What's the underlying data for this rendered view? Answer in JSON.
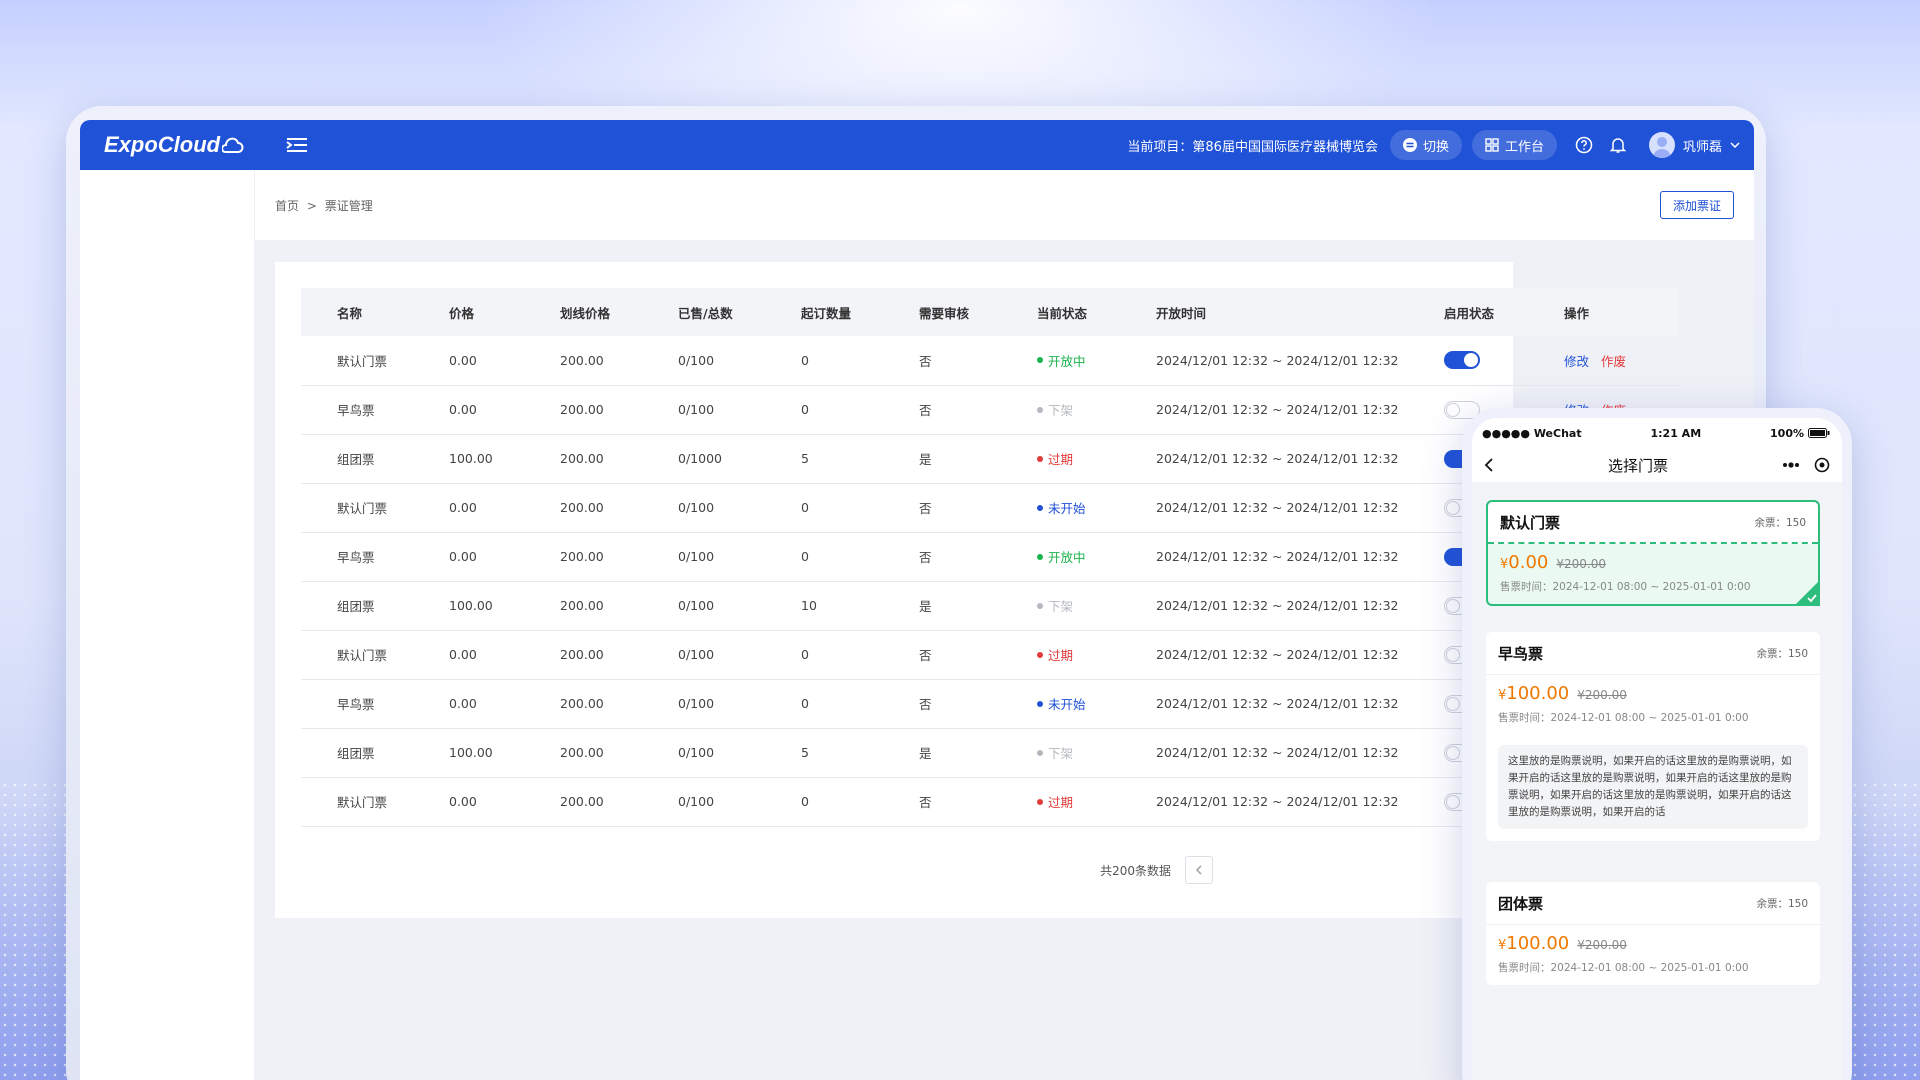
{
  "app": {
    "brand": "ExpoCloud",
    "project_label": "当前项目：第86届中国国际医疗器械博览会",
    "switch_label": "切换",
    "workspace_label": "工作台",
    "user_name": "巩师磊",
    "accent": "#2052d7"
  },
  "breadcrumb": {
    "home": "首页",
    "sep": ">",
    "current": "票证管理"
  },
  "add_button": "添加票证",
  "table": {
    "headers": [
      "名称",
      "价格",
      "划线价格",
      "已售/总数",
      "起订数量",
      "需要审核",
      "当前状态",
      "开放时间",
      "启用状态",
      "操作"
    ],
    "rows": [
      {
        "name": "默认门票",
        "price": "0.00",
        "list_price": "200.00",
        "sold": "0/100",
        "min": "0",
        "review": "否",
        "status": "开放中",
        "status_color": "#19b34b",
        "time": "2024/12/01 12:32 ~ 2024/12/01 12:32",
        "enabled": true
      },
      {
        "name": "早鸟票",
        "price": "0.00",
        "list_price": "200.00",
        "sold": "0/100",
        "min": "0",
        "review": "否",
        "status": "下架",
        "status_color": "#b5b8bf",
        "time": "2024/12/01 12:32 ~ 2024/12/01 12:32",
        "enabled": false
      },
      {
        "name": "组团票",
        "price": "100.00",
        "list_price": "200.00",
        "sold": "0/1000",
        "min": "5",
        "review": "是",
        "status": "过期",
        "status_color": "#e23b3b",
        "time": "2024/12/01 12:32 ~ 2024/12/01 12:32",
        "enabled": true
      },
      {
        "name": "默认门票",
        "price": "0.00",
        "list_price": "200.00",
        "sold": "0/100",
        "min": "0",
        "review": "否",
        "status": "未开始",
        "status_color": "#2052d7",
        "time": "2024/12/01 12:32 ~ 2024/12/01 12:32",
        "enabled": false
      },
      {
        "name": "早鸟票",
        "price": "0.00",
        "list_price": "200.00",
        "sold": "0/100",
        "min": "0",
        "review": "否",
        "status": "开放中",
        "status_color": "#19b34b",
        "time": "2024/12/01 12:32 ~ 2024/12/01 12:32",
        "enabled": true
      },
      {
        "name": "组团票",
        "price": "100.00",
        "list_price": "200.00",
        "sold": "0/100",
        "min": "10",
        "review": "是",
        "status": "下架",
        "status_color": "#b5b8bf",
        "time": "2024/12/01 12:32 ~ 2024/12/01 12:32",
        "enabled": false
      },
      {
        "name": "默认门票",
        "price": "0.00",
        "list_price": "200.00",
        "sold": "0/100",
        "min": "0",
        "review": "否",
        "status": "过期",
        "status_color": "#e23b3b",
        "time": "2024/12/01 12:32 ~ 2024/12/01 12:32",
        "enabled": false
      },
      {
        "name": "早鸟票",
        "price": "0.00",
        "list_price": "200.00",
        "sold": "0/100",
        "min": "0",
        "review": "否",
        "status": "未开始",
        "status_color": "#2052d7",
        "time": "2024/12/01 12:32 ~ 2024/12/01 12:32",
        "enabled": false
      },
      {
        "name": "组团票",
        "price": "100.00",
        "list_price": "200.00",
        "sold": "0/100",
        "min": "5",
        "review": "是",
        "status": "下架",
        "status_color": "#b5b8bf",
        "time": "2024/12/01 12:32 ~ 2024/12/01 12:32",
        "enabled": false
      },
      {
        "name": "默认门票",
        "price": "0.00",
        "list_price": "200.00",
        "sold": "0/100",
        "min": "0",
        "review": "否",
        "status": "过期",
        "status_color": "#e23b3b",
        "time": "2024/12/01 12:32 ~ 2024/12/01 12:32",
        "enabled": false
      }
    ],
    "actions": {
      "edit": "修改",
      "void": "作废"
    }
  },
  "pager": {
    "total": "共200条数据"
  },
  "phone": {
    "carrier": "●●●●● WeChat",
    "time": "1:21 AM",
    "battery": "100%",
    "title": "选择门票",
    "tickets": [
      {
        "name": "默认门票",
        "left": "余票：150",
        "yen": "¥",
        "price": "0.00",
        "old": "¥200.00",
        "time": "售票时间：2024-12-01 08:00 ~ 2025-01-01 0:00",
        "selected": true
      },
      {
        "name": "早鸟票",
        "left": "余票：150",
        "yen": "¥",
        "price": "100.00",
        "old": "¥200.00",
        "time": "售票时间：2024-12-01 08:00 ~ 2025-01-01 0:00",
        "desc": "这里放的是购票说明，如果开启的话这里放的是购票说明，如果开启的话这里放的是购票说明，如果开启的话这里放的是购票说明，如果开启的话这里放的是购票说明，如果开启的话这里放的是购票说明，如果开启的话"
      },
      {
        "name": "团体票",
        "left": "余票：150",
        "yen": "¥",
        "price": "100.00",
        "old": "¥200.00",
        "time": "售票时间：2024-12-01 08:00 ~ 2025-01-01 0:00"
      }
    ]
  }
}
